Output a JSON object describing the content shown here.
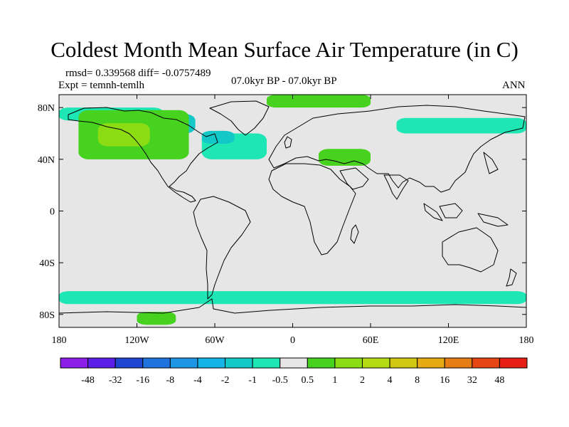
{
  "header": {
    "title": "Coldest Month Mean Surface Air Temperature (in C)",
    "stats": "rmsd= 0.339568 diff= -0.0757489",
    "experiment": "Expt = temnh-temlh",
    "period": "07.0kyr BP - 07.0kyr BP",
    "season": "ANN"
  },
  "chart_data": {
    "type": "heatmap",
    "title": "Coldest Month Mean Surface Air Temperature (in C)",
    "subtitle": "07.0kyr BP - 07.0kyr BP",
    "xlabel": "",
    "ylabel": "",
    "xlim": [
      -180,
      180
    ],
    "ylim": [
      -90,
      90
    ],
    "x_ticks": [
      {
        "value": -180,
        "label": "180"
      },
      {
        "value": -120,
        "label": "120W"
      },
      {
        "value": -60,
        "label": "60W"
      },
      {
        "value": 0,
        "label": "0"
      },
      {
        "value": 60,
        "label": "60E"
      },
      {
        "value": 120,
        "label": "120E"
      },
      {
        "value": 180,
        "label": "180"
      }
    ],
    "y_ticks": [
      {
        "value": 80,
        "label": "80N"
      },
      {
        "value": 40,
        "label": "40N"
      },
      {
        "value": 0,
        "label": "0"
      },
      {
        "value": -40,
        "label": "40S"
      },
      {
        "value": -80,
        "label": "80S"
      }
    ],
    "colorbar": {
      "boundaries": [
        "-48",
        "-32",
        "-16",
        "-8",
        "-4",
        "-2",
        "-1",
        "-0.5",
        "0.5",
        "1",
        "2",
        "4",
        "8",
        "16",
        "32",
        "48"
      ],
      "colors": [
        "#8b1ee8",
        "#5a1ee8",
        "#1e46d2",
        "#1e73dc",
        "#1e96e6",
        "#14b4e6",
        "#14c8c8",
        "#1ee6b4",
        "#e6e6e6",
        "#46d21e",
        "#8cdc14",
        "#b4dc14",
        "#d2c814",
        "#e6aa14",
        "#e67d14",
        "#e64614",
        "#e61e14"
      ]
    },
    "anomaly_regions": [
      {
        "class": "-0.5 to -1",
        "color": "#1ee6b4",
        "lon": [
          -180,
          -100
        ],
        "lat": [
          70,
          80
        ]
      },
      {
        "class": "-0.5 to -1",
        "color": "#1ee6b4",
        "lon": [
          -70,
          -20
        ],
        "lat": [
          40,
          60
        ]
      },
      {
        "class": "-0.5 to -1",
        "color": "#1ee6b4",
        "lon": [
          80,
          180
        ],
        "lat": [
          60,
          72
        ]
      },
      {
        "class": "-0.5 to -1",
        "color": "#1ee6b4",
        "lon": [
          -180,
          180
        ],
        "lat": [
          -72,
          -62
        ]
      },
      {
        "class": "-1 to -2",
        "color": "#14c8c8",
        "lon": [
          -100,
          -75
        ],
        "lat": [
          60,
          75
        ]
      },
      {
        "class": "-1 to -2",
        "color": "#14c8c8",
        "lon": [
          -70,
          -45
        ],
        "lat": [
          52,
          62
        ]
      },
      {
        "class": "0.5 to 1",
        "color": "#46d21e",
        "lon": [
          -165,
          -80
        ],
        "lat": [
          40,
          78
        ]
      },
      {
        "class": "0.5 to 1",
        "color": "#46d21e",
        "lon": [
          -20,
          60
        ],
        "lat": [
          80,
          90
        ]
      },
      {
        "class": "0.5 to 1",
        "color": "#46d21e",
        "lon": [
          20,
          60
        ],
        "lat": [
          35,
          48
        ]
      },
      {
        "class": "0.5 to 1",
        "color": "#46d21e",
        "lon": [
          -120,
          -90
        ],
        "lat": [
          -88,
          -78
        ]
      },
      {
        "class": "1 to 2",
        "color": "#8cdc14",
        "lon": [
          -150,
          -110
        ],
        "lat": [
          50,
          68
        ]
      }
    ]
  }
}
